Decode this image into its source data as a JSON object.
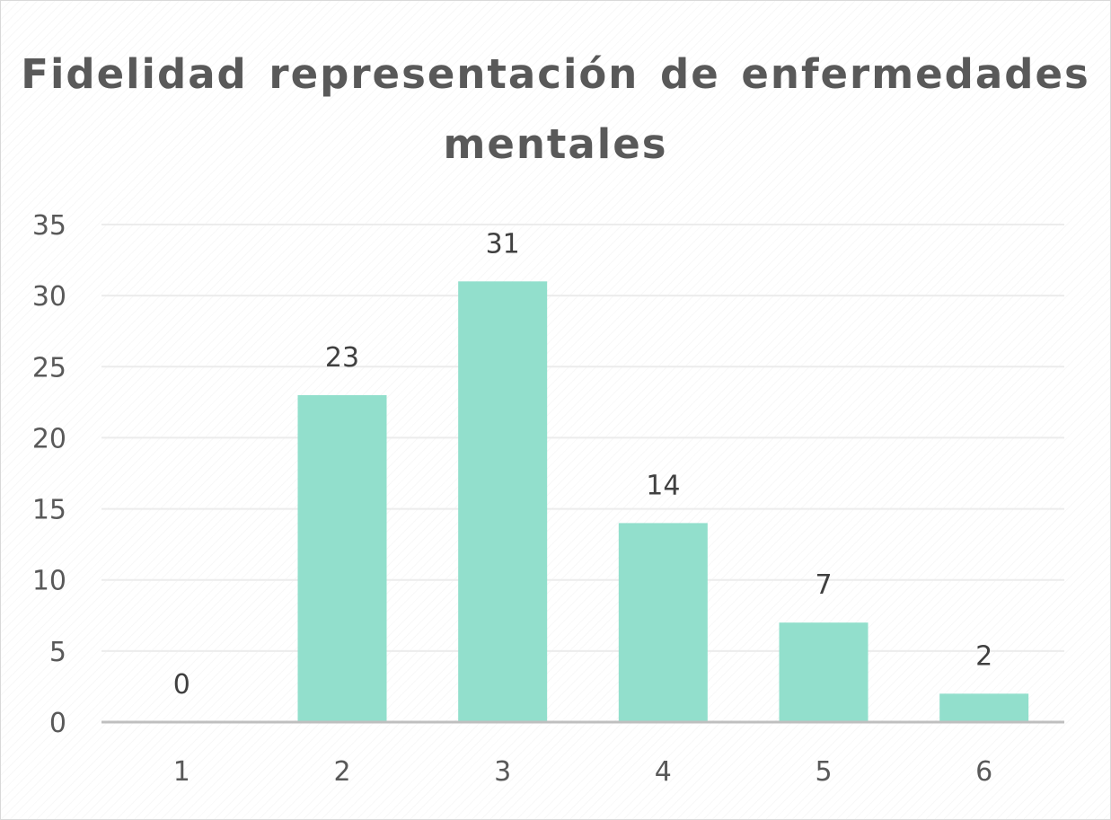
{
  "chart_data": {
    "type": "bar",
    "title": "Fidelidad representación de enfermedades mentales",
    "categories": [
      "1",
      "2",
      "3",
      "4",
      "5",
      "6"
    ],
    "series": [
      {
        "values": [
          0,
          23,
          31,
          14,
          7,
          2
        ]
      }
    ],
    "data_labels": [
      "0",
      "23",
      "31",
      "14",
      "7",
      "2"
    ],
    "y_ticks": [
      "0",
      "5",
      "10",
      "15",
      "20",
      "25",
      "30",
      "35"
    ],
    "ylim": [
      0,
      35
    ],
    "xlabel": "",
    "ylabel": "",
    "grid": true,
    "legend": "none",
    "colors": {
      "bar": "#92dfcc",
      "gridline": "#ececec",
      "axis": "#bfbfbf",
      "title": "#595959"
    }
  }
}
